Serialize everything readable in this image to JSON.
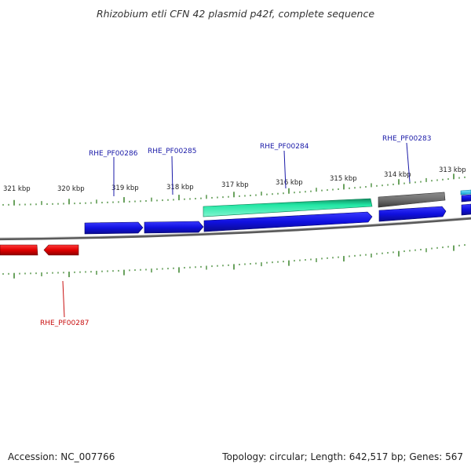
{
  "title": "Rhizobium etli CFN 42 plasmid p42f, complete sequence",
  "footer": {
    "accession": "Accession: NC_007766",
    "summary": "Topology: circular; Length: 642,517 bp; Genes: 567"
  },
  "colors": {
    "cds_forward": "#1010e0",
    "cds_reverse": "#e00000",
    "rna_teal": "#22e6a4",
    "gray_feature": "#6e6e6e",
    "cyan_feature": "#22c8f0",
    "tick": "#2a7a1a",
    "backbone": "#8a8a8a",
    "label_forward": "#1a1aa8",
    "label_reverse": "#c81010"
  },
  "scale": {
    "unit": "kbp",
    "labels": [
      "321 kbp",
      "320 kbp",
      "319 kbp",
      "318 kbp",
      "317 kbp",
      "316 kbp",
      "315 kbp",
      "314 kbp",
      "313 kbp"
    ]
  },
  "gene_labels": [
    {
      "text": "RHE_PF00286",
      "strand": "forward"
    },
    {
      "text": "RHE_PF00285",
      "strand": "forward"
    },
    {
      "text": "RHE_PF00284",
      "strand": "forward"
    },
    {
      "text": "RHE_PF00283",
      "strand": "forward"
    },
    {
      "text": "RHE_PF00287",
      "strand": "reverse"
    }
  ]
}
